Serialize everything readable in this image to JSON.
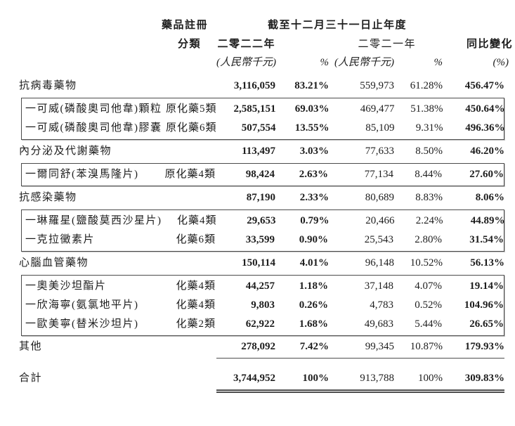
{
  "header": {
    "reg_class_line1": "藥品註冊",
    "reg_class_line2": "分類",
    "period_title": "截至十二月三十一日止年度",
    "year_2022": "二零二二年",
    "year_2021": "二零二一年",
    "yoy_label": "同比變化",
    "unit_2022": "(人民幣千元)",
    "pct_2022": "%",
    "unit_2021": "(人民幣千元)",
    "pct_2021": "%",
    "yoy_unit": "(%)"
  },
  "table": {
    "rows": [
      {
        "label": "抗病毒藥物",
        "cls": "",
        "v2022": "3,116,059",
        "p2022": "83.21%",
        "v2021": "559,973",
        "p2021": "61.28%",
        "yoy": "456.47%"
      },
      {
        "label": "一可威(磷酸奧司他韋)顆粒",
        "cls": "原化藥5類",
        "v2022": "2,585,151",
        "p2022": "69.03%",
        "v2021": "469,477",
        "p2021": "51.38%",
        "yoy": "450.64%"
      },
      {
        "label": "一可威(磷酸奧司他韋)膠囊",
        "cls": "原化藥6類",
        "v2022": "507,554",
        "p2022": "13.55%",
        "v2021": "85,109",
        "p2021": "9.31%",
        "yoy": "496.36%"
      },
      {
        "label": "內分泌及代謝藥物",
        "cls": "",
        "v2022": "113,497",
        "p2022": "3.03%",
        "v2021": "77,633",
        "p2021": "8.50%",
        "yoy": "46.20%"
      },
      {
        "label": "一爾同舒(苯溴馬隆片)",
        "cls": "原化藥4類",
        "v2022": "98,424",
        "p2022": "2.63%",
        "v2021": "77,134",
        "p2021": "8.44%",
        "yoy": "27.60%"
      },
      {
        "label": "抗感染藥物",
        "cls": "",
        "v2022": "87,190",
        "p2022": "2.33%",
        "v2021": "80,689",
        "p2021": "8.83%",
        "yoy": "8.06%"
      },
      {
        "label": "一琳羅星(鹽酸莫西沙星片)",
        "cls": "化藥4類",
        "v2022": "29,653",
        "p2022": "0.79%",
        "v2021": "20,466",
        "p2021": "2.24%",
        "yoy": "44.89%"
      },
      {
        "label": "一克拉黴素片",
        "cls": "化藥6類",
        "v2022": "33,599",
        "p2022": "0.90%",
        "v2021": "25,543",
        "p2021": "2.80%",
        "yoy": "31.54%"
      },
      {
        "label": "心腦血管藥物",
        "cls": "",
        "v2022": "150,114",
        "p2022": "4.01%",
        "v2021": "96,148",
        "p2021": "10.52%",
        "yoy": "56.13%"
      },
      {
        "label": "一奧美沙坦酯片",
        "cls": "化藥4類",
        "v2022": "44,257",
        "p2022": "1.18%",
        "v2021": "37,148",
        "p2021": "4.07%",
        "yoy": "19.14%"
      },
      {
        "label": "一欣海寧(氨氯地平片)",
        "cls": "化藥4類",
        "v2022": "9,803",
        "p2022": "0.26%",
        "v2021": "4,783",
        "p2021": "0.52%",
        "yoy": "104.96%"
      },
      {
        "label": "一歐美寧(替米沙坦片)",
        "cls": "化藥2類",
        "v2022": "62,922",
        "p2022": "1.68%",
        "v2021": "49,683",
        "p2021": "5.44%",
        "yoy": "26.65%"
      },
      {
        "label": "其他",
        "cls": "",
        "v2022": "278,092",
        "p2022": "7.42%",
        "v2021": "99,345",
        "p2021": "10.87%",
        "yoy": "179.93%"
      },
      {
        "label": "合計",
        "cls": "",
        "v2022": "3,744,952",
        "p2022": "100%",
        "v2021": "913,788",
        "p2021": "100%",
        "yoy": "309.83%"
      }
    ]
  }
}
